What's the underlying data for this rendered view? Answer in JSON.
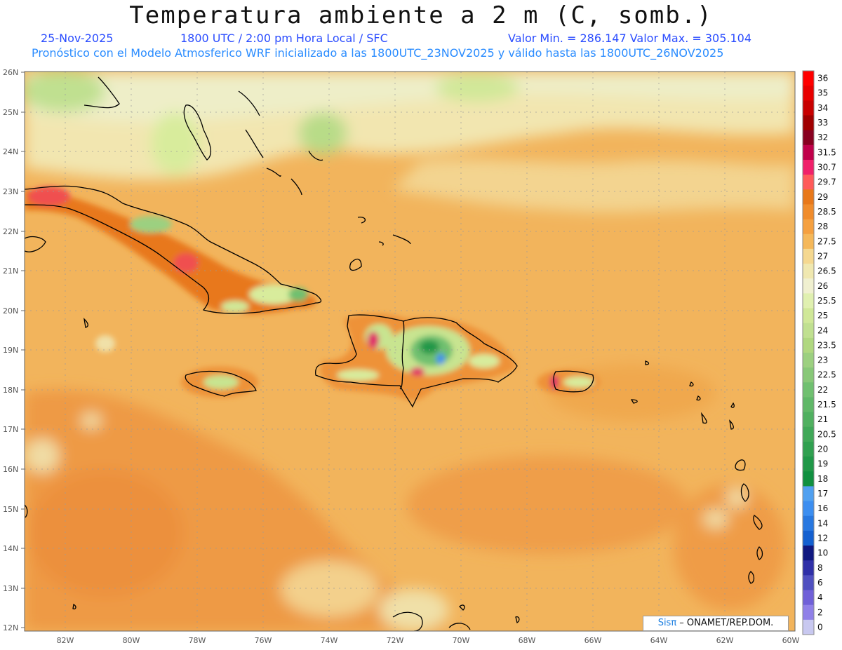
{
  "header": {
    "title": "Temperatura ambiente a 2 m (C, somb.)",
    "date": "25-Nov-2025",
    "time": "1800 UTC / 2:00 pm Hora Local / SFC",
    "minmax": "Valor Min. = 286.147  Valor Max. = 305.104",
    "forecast_info": "Pronóstico con el Modelo Atmosferico WRF inicializado a las 1800UTC_23NOV2025 y válido hasta las  1800UTC_26NOV2025"
  },
  "map": {
    "lat_labels": [
      "26N",
      "25N",
      "24N",
      "23N",
      "22N",
      "21N",
      "20N",
      "19N",
      "18N",
      "17N",
      "16N",
      "15N",
      "14N",
      "13N",
      "12N"
    ],
    "lon_labels": [
      "82W",
      "80W",
      "78W",
      "76W",
      "74W",
      "72W",
      "70W",
      "68W",
      "66W",
      "64W",
      "62W",
      "60W"
    ]
  },
  "colorbar": {
    "levels": [
      "36",
      "35",
      "34",
      "33",
      "32",
      "31.5",
      "30.7",
      "29.7",
      "29",
      "28.5",
      "28",
      "27.5",
      "27",
      "26.5",
      "26",
      "25.5",
      "25",
      "24",
      "23.5",
      "23",
      "22.5",
      "22",
      "21.5",
      "21",
      "20.5",
      "20",
      "19",
      "18",
      "17",
      "16",
      "14",
      "12",
      "10",
      "8",
      "6",
      "4",
      "2",
      "0"
    ],
    "colors": [
      "#ff0000",
      "#e80000",
      "#c80000",
      "#a00000",
      "#880020",
      "#c0004a",
      "#f0206a",
      "#ff5a5a",
      "#e8781a",
      "#f08c2c",
      "#f5a040",
      "#f5b85a",
      "#f5d890",
      "#f0e8b0",
      "#f0f0d0",
      "#e0f0b0",
      "#d0e898",
      "#c0e090",
      "#b0d880",
      "#9cd080",
      "#88c878",
      "#70c070",
      "#60b868",
      "#50b060",
      "#40a858",
      "#30a050",
      "#209848",
      "#109040",
      "#50a0f0",
      "#3c8ef0",
      "#2878e0",
      "#1460d0",
      "#101880",
      "#3030a8",
      "#5050c0",
      "#7060d8",
      "#9080e8",
      "#c8c8f0"
    ]
  },
  "credit": {
    "brand": "Sisπ",
    "text": " – ONAMET/REP.DOM."
  }
}
